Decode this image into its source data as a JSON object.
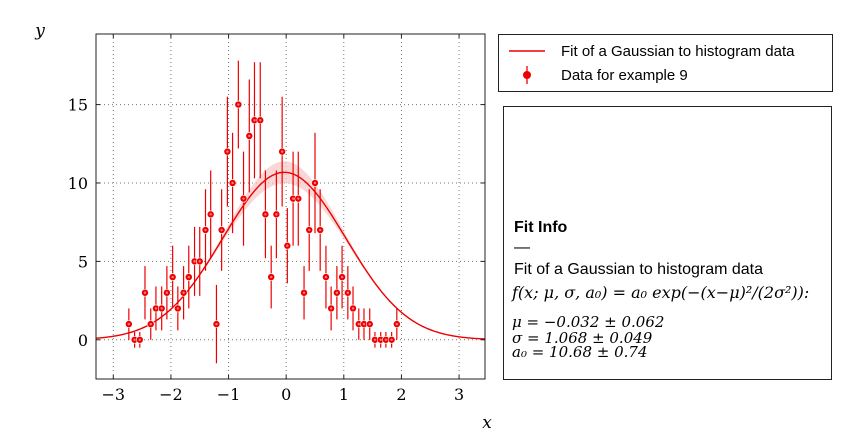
{
  "chart_data": {
    "type": "scatter",
    "xlabel": "x",
    "ylabel": "y",
    "xlim": [
      -3.3,
      3.45
    ],
    "ylim": [
      -2.5,
      19.5
    ],
    "xticks": [
      -3,
      -2,
      -1,
      0,
      1,
      2,
      3
    ],
    "yticks": [
      0,
      5,
      10,
      15
    ],
    "xtick_labels": [
      "−3",
      "−2",
      "−1",
      "0",
      "1",
      "2",
      "3"
    ],
    "ytick_labels": [
      "0",
      "5",
      "10",
      "15"
    ],
    "grid": true,
    "legend_position": "outside-top-right",
    "colors": {
      "series": "#ee0000",
      "band": "#f7c6c6"
    },
    "series": [
      {
        "name": "Data for example 9",
        "kind": "errorbar",
        "points": [
          {
            "x": -2.73,
            "y": 1,
            "err": 1.0
          },
          {
            "x": -2.63,
            "y": 0,
            "err": 0.5
          },
          {
            "x": -2.54,
            "y": 0,
            "err": 0.5
          },
          {
            "x": -2.45,
            "y": 3,
            "err": 1.7
          },
          {
            "x": -2.35,
            "y": 1,
            "err": 1.0
          },
          {
            "x": -2.26,
            "y": 2,
            "err": 1.4
          },
          {
            "x": -2.16,
            "y": 2,
            "err": 1.4
          },
          {
            "x": -2.07,
            "y": 3,
            "err": 1.7
          },
          {
            "x": -1.97,
            "y": 4,
            "err": 2.0
          },
          {
            "x": -1.88,
            "y": 2,
            "err": 1.4
          },
          {
            "x": -1.78,
            "y": 3,
            "err": 1.7
          },
          {
            "x": -1.69,
            "y": 4,
            "err": 2.0
          },
          {
            "x": -1.59,
            "y": 5,
            "err": 2.2
          },
          {
            "x": -1.5,
            "y": 5,
            "err": 2.2
          },
          {
            "x": -1.4,
            "y": 7,
            "err": 2.6
          },
          {
            "x": -1.31,
            "y": 8,
            "err": 2.8
          },
          {
            "x": -1.21,
            "y": 1,
            "err": 2.5
          },
          {
            "x": -1.12,
            "y": 7,
            "err": 2.6
          },
          {
            "x": -1.02,
            "y": 12,
            "err": 3.5
          },
          {
            "x": -0.93,
            "y": 10,
            "err": 3.2
          },
          {
            "x": -0.83,
            "y": 15,
            "err": 2.8
          },
          {
            "x": -0.74,
            "y": 9,
            "err": 3.0
          },
          {
            "x": -0.64,
            "y": 13,
            "err": 3.6
          },
          {
            "x": -0.55,
            "y": 14,
            "err": 3.7
          },
          {
            "x": -0.45,
            "y": 14,
            "err": 3.7
          },
          {
            "x": -0.36,
            "y": 8,
            "err": 2.8
          },
          {
            "x": -0.26,
            "y": 4,
            "err": 2.0
          },
          {
            "x": -0.17,
            "y": 8,
            "err": 2.8
          },
          {
            "x": -0.07,
            "y": 12,
            "err": 3.5
          },
          {
            "x": 0.02,
            "y": 6,
            "err": 2.4
          },
          {
            "x": 0.12,
            "y": 9,
            "err": 3.0
          },
          {
            "x": 0.21,
            "y": 9,
            "err": 3.0
          },
          {
            "x": 0.31,
            "y": 3,
            "err": 1.7
          },
          {
            "x": 0.4,
            "y": 7,
            "err": 2.6
          },
          {
            "x": 0.5,
            "y": 10,
            "err": 3.2
          },
          {
            "x": 0.59,
            "y": 7,
            "err": 2.6
          },
          {
            "x": 0.69,
            "y": 4,
            "err": 2.0
          },
          {
            "x": 0.78,
            "y": 2,
            "err": 1.4
          },
          {
            "x": 0.88,
            "y": 3,
            "err": 1.7
          },
          {
            "x": 0.97,
            "y": 4,
            "err": 2.0
          },
          {
            "x": 1.07,
            "y": 3,
            "err": 1.7
          },
          {
            "x": 1.16,
            "y": 2,
            "err": 1.4
          },
          {
            "x": 1.26,
            "y": 1,
            "err": 1.0
          },
          {
            "x": 1.35,
            "y": 1,
            "err": 1.0
          },
          {
            "x": 1.45,
            "y": 1,
            "err": 1.0
          },
          {
            "x": 1.54,
            "y": 0,
            "err": 0.5
          },
          {
            "x": 1.64,
            "y": 0,
            "err": 0.5
          },
          {
            "x": 1.73,
            "y": 0,
            "err": 0.5
          },
          {
            "x": 1.83,
            "y": 0,
            "err": 0.5
          },
          {
            "x": 1.92,
            "y": 1,
            "err": 1.0
          }
        ]
      },
      {
        "name": "Fit of a Gaussian to histogram data",
        "kind": "line",
        "function": "gaussian",
        "mu": -0.032,
        "sigma": 1.068,
        "a0": 10.68
      }
    ]
  },
  "fit_info": {
    "title": "Fit Info",
    "separator": "—",
    "name": "Fit of a Gaussian to histogram data",
    "formula": "f(x; μ, σ, a₀) = a₀ exp(−(x−μ)²/(2σ²)):",
    "params": [
      "μ = −0.032 ± 0.062",
      "σ = 1.068 ± 0.049",
      "a₀ = 10.68 ± 0.74"
    ]
  }
}
